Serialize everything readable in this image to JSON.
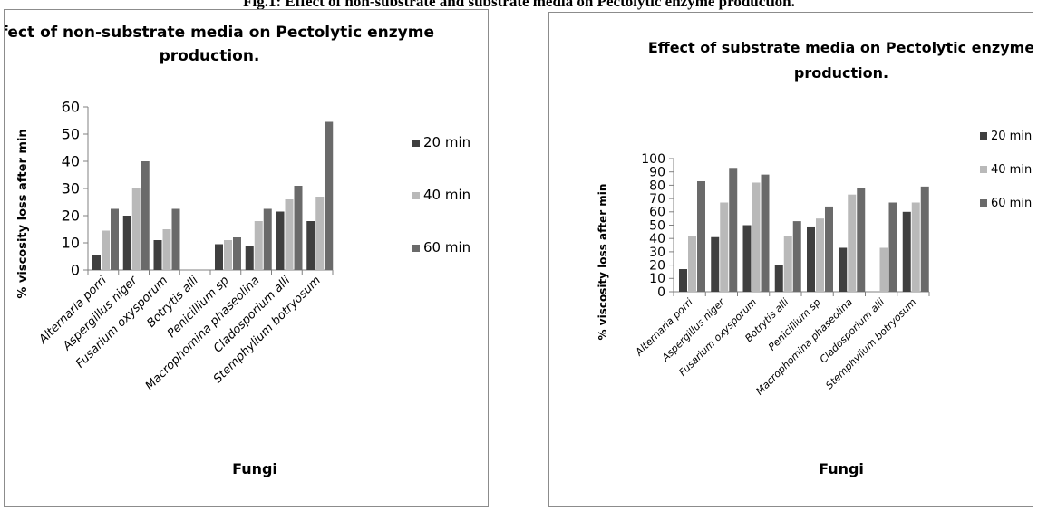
{
  "figure_caption": "Fig.1: Effect of non-substrate and substrate media on Pectolytic enzyme production.",
  "colors": {
    "s20": "#3f3f3f",
    "s40": "#b9b9b9",
    "s60": "#6a6a6a",
    "axis": "#808080",
    "text": "#000000"
  },
  "chart_data": [
    {
      "type": "bar",
      "title_lines": [
        "Effect of non-substrate  media on Pectolytic enzyme",
        "production."
      ],
      "xlabel": "Fungi",
      "ylabel": "% viscosity loss after min",
      "ylim": [
        0,
        60
      ],
      "yticks": [
        0,
        10,
        20,
        30,
        40,
        50,
        60
      ],
      "grid": false,
      "legend_position": "right",
      "categories": [
        "Alternaria porri",
        "Aspergillus niger",
        "Fusarium oxysporum",
        "Botrytis alli",
        "Penicillium sp",
        "Macrophomina phaseolina",
        "Cladosporium alli",
        "Stemphylium botryosum"
      ],
      "series": [
        {
          "name": "20 min",
          "values": [
            5.5,
            20,
            11,
            0,
            9.5,
            9,
            21.5,
            18
          ]
        },
        {
          "name": "40 min",
          "values": [
            14.5,
            30,
            15,
            0,
            11,
            18,
            26,
            27
          ]
        },
        {
          "name": "60 min",
          "values": [
            22.5,
            40,
            22.5,
            0,
            12,
            22.5,
            31,
            54.5
          ]
        }
      ]
    },
    {
      "type": "bar",
      "title_lines": [
        "Effect of substrate  media on Pectolytic enzyme",
        "production."
      ],
      "xlabel": "Fungi",
      "ylabel": "% viscosity loss after min",
      "ylim": [
        0,
        100
      ],
      "yticks": [
        0,
        10,
        20,
        30,
        40,
        50,
        60,
        70,
        80,
        90,
        100
      ],
      "grid": false,
      "legend_position": "right",
      "categories": [
        "Alternaria porri",
        "Aspergillus niger",
        "Fusarium oxysporum",
        "Botrytis alli",
        "Penicillium sp",
        "Macrophomina phaseolina",
        "Cladosporium alli",
        "Stemphylium botryosum"
      ],
      "series": [
        {
          "name": "20 min",
          "values": [
            17,
            41,
            50,
            20,
            49,
            33,
            0,
            60
          ]
        },
        {
          "name": "40 min",
          "values": [
            42,
            67,
            82,
            42,
            55,
            73,
            33,
            67
          ]
        },
        {
          "name": "60 min",
          "values": [
            83,
            93,
            88,
            53,
            64,
            78,
            67,
            79
          ]
        }
      ]
    }
  ]
}
